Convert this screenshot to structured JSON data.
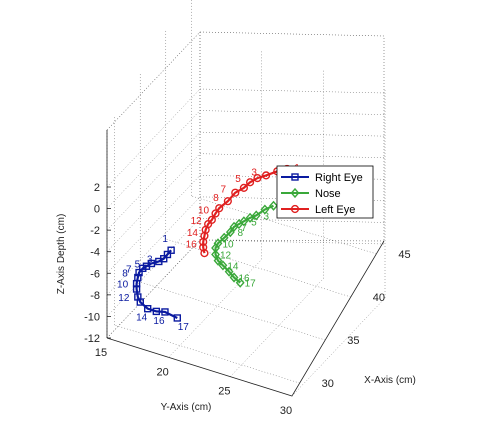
{
  "chart_data": {
    "type": "line",
    "subtype": "3d-trajectory",
    "title": "",
    "xlabel": "X-Axis (cm)",
    "ylabel": "Y-Axis (cm)",
    "zlabel": "Z-Axis Depth (cm)",
    "x_ticks": [
      "30",
      "35",
      "40",
      "45"
    ],
    "y_ticks": [
      "15",
      "20",
      "25",
      "30"
    ],
    "z_ticks": [
      "2",
      "0",
      "-2",
      "-4",
      "-6",
      "-8",
      "-10",
      "-12"
    ],
    "xlim": [
      30,
      45
    ],
    "ylim": [
      15,
      30
    ],
    "zlim": [
      -12,
      2
    ],
    "grid": true,
    "legend_position": "right",
    "series": [
      {
        "name": "Right Eye",
        "color": "#0a1aa0",
        "marker": "square",
        "points": [
          {
            "x": 20.2,
            "y": -2.0
          },
          {
            "x": 19.9,
            "y": -2.5
          },
          {
            "x": 19.6,
            "y": -3.0
          },
          {
            "x": 19.2,
            "y": -3.4
          },
          {
            "x": 18.6,
            "y": -3.8
          },
          {
            "x": 18.2,
            "y": -4.2
          },
          {
            "x": 17.9,
            "y": -4.5
          },
          {
            "x": 17.6,
            "y": -5.0
          },
          {
            "x": 17.5,
            "y": -5.5
          },
          {
            "x": 17.4,
            "y": -6.1
          },
          {
            "x": 17.4,
            "y": -6.6
          },
          {
            "x": 17.5,
            "y": -7.3
          },
          {
            "x": 17.7,
            "y": -7.7
          },
          {
            "x": 18.3,
            "y": -8.1
          },
          {
            "x": 19.0,
            "y": -8.1
          },
          {
            "x": 19.7,
            "y": -7.9
          },
          {
            "x": 20.7,
            "y": -8.1
          }
        ],
        "labels": [
          {
            "index": 0,
            "text": "1"
          },
          {
            "index": 4,
            "text": "5"
          },
          {
            "index": 2,
            "text": "3"
          },
          {
            "index": 6,
            "text": "7"
          },
          {
            "index": 7,
            "text": "8"
          },
          {
            "index": 9,
            "text": "10"
          },
          {
            "index": 11,
            "text": "12"
          },
          {
            "index": 13,
            "text": "14"
          },
          {
            "index": 15,
            "text": "16"
          },
          {
            "index": 16,
            "text": "17"
          }
        ]
      },
      {
        "name": "Nose",
        "color": "#3aa83a",
        "marker": "diamond",
        "points": [
          {
            "x": 28.5,
            "y": 5.1
          },
          {
            "x": 27.8,
            "y": 4.5
          },
          {
            "x": 27.1,
            "y": 3.7
          },
          {
            "x": 26.6,
            "y": 3.3
          },
          {
            "x": 26.1,
            "y": 2.8
          },
          {
            "x": 25.7,
            "y": 2.4
          },
          {
            "x": 25.3,
            "y": 2.0
          },
          {
            "x": 25.0,
            "y": 1.4
          },
          {
            "x": 24.5,
            "y": 0.7
          },
          {
            "x": 24.0,
            "y": 0.0
          },
          {
            "x": 23.8,
            "y": -0.5
          },
          {
            "x": 23.8,
            "y": -1.1
          },
          {
            "x": 24.0,
            "y": -1.6
          },
          {
            "x": 24.4,
            "y": -1.9
          },
          {
            "x": 24.9,
            "y": -2.3
          },
          {
            "x": 25.3,
            "y": -2.7
          },
          {
            "x": 25.8,
            "y": -3.0
          }
        ],
        "labels": [
          {
            "index": 0,
            "text": "1"
          },
          {
            "index": 2,
            "text": "3"
          },
          {
            "index": 4,
            "text": "5"
          },
          {
            "index": 6,
            "text": "7"
          },
          {
            "index": 7,
            "text": "8"
          },
          {
            "index": 9,
            "text": "10"
          },
          {
            "index": 11,
            "text": "12"
          },
          {
            "index": 13,
            "text": "14"
          },
          {
            "index": 15,
            "text": "16"
          },
          {
            "index": 16,
            "text": "17"
          }
        ]
      },
      {
        "name": "Left Eye",
        "color": "#e02020",
        "marker": "circle",
        "points": [
          {
            "x": 29.6,
            "y": 8.9
          },
          {
            "x": 28.8,
            "y": 8.4
          },
          {
            "x": 27.9,
            "y": 7.7
          },
          {
            "x": 27.2,
            "y": 7.2
          },
          {
            "x": 26.6,
            "y": 6.6
          },
          {
            "x": 26.1,
            "y": 5.9
          },
          {
            "x": 25.4,
            "y": 5.2
          },
          {
            "x": 24.8,
            "y": 4.2
          },
          {
            "x": 24.1,
            "y": 3.3
          },
          {
            "x": 23.8,
            "y": 2.7
          },
          {
            "x": 23.5,
            "y": 2.0
          },
          {
            "x": 23.2,
            "y": 1.5
          },
          {
            "x": 23.0,
            "y": 0.9
          },
          {
            "x": 22.9,
            "y": 0.3
          },
          {
            "x": 22.8,
            "y": -0.3
          },
          {
            "x": 22.8,
            "y": -0.8
          },
          {
            "x": 22.9,
            "y": -1.3
          }
        ],
        "labels": [
          {
            "index": 0,
            "text": "1"
          },
          {
            "index": 2,
            "text": "3"
          },
          {
            "index": 4,
            "text": "5"
          },
          {
            "index": 6,
            "text": "7"
          },
          {
            "index": 7,
            "text": "8"
          },
          {
            "index": 9,
            "text": "10"
          },
          {
            "index": 11,
            "text": "12"
          },
          {
            "index": 13,
            "text": "14"
          },
          {
            "index": 15,
            "text": "16"
          }
        ]
      }
    ]
  }
}
